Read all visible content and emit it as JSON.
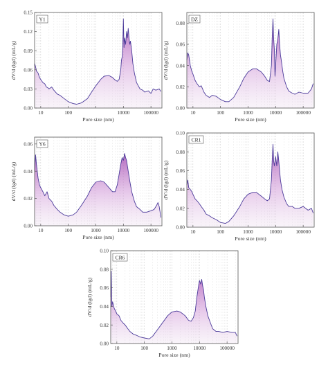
{
  "chart_data": [
    {
      "type": "area",
      "panel_label": "Y1",
      "xlabel": "Pore size (nm)",
      "ylabel": "dV/d (lgd) (mL/g)",
      "x_scale": "log",
      "xlim": [
        6,
        250000
      ],
      "ylim": [
        0,
        0.15
      ],
      "yticks": [
        0.0,
        0.03,
        0.06,
        0.09,
        0.12,
        0.15
      ],
      "ytick_labels": [
        "0.00",
        "0.03",
        "0.06",
        "0.09",
        "0.12",
        "0.15"
      ],
      "xticks": [
        10,
        100,
        1000,
        10000,
        100000
      ],
      "xtick_labels": [
        "10",
        "100",
        "",
        "10000",
        "100000"
      ],
      "grid": "vertical dashed",
      "series": [
        {
          "x": [
            6,
            6.5,
            7,
            8,
            9,
            10,
            12,
            14,
            16,
            18,
            20,
            25,
            30,
            40,
            50,
            70,
            100,
            150,
            200,
            300,
            500,
            700,
            1000,
            1500,
            2000,
            3000,
            4000,
            5000,
            6000,
            7000,
            8000,
            8500,
            9000,
            9500,
            10000,
            10500,
            11000,
            12000,
            13000,
            14000,
            15000,
            16000,
            17000,
            18000,
            20000,
            22000,
            25000,
            30000,
            40000,
            50000,
            60000,
            80000,
            100000,
            120000,
            150000,
            200000,
            230000
          ],
          "y": [
            0.07,
            0.065,
            0.058,
            0.055,
            0.048,
            0.045,
            0.04,
            0.038,
            0.033,
            0.032,
            0.03,
            0.033,
            0.028,
            0.022,
            0.02,
            0.015,
            0.01,
            0.007,
            0.006,
            0.008,
            0.015,
            0.025,
            0.035,
            0.045,
            0.05,
            0.051,
            0.048,
            0.044,
            0.042,
            0.045,
            0.06,
            0.075,
            0.08,
            0.095,
            0.14,
            0.095,
            0.11,
            0.1,
            0.12,
            0.11,
            0.125,
            0.11,
            0.1,
            0.105,
            0.09,
            0.07,
            0.055,
            0.04,
            0.03,
            0.028,
            0.025,
            0.027,
            0.023,
            0.03,
            0.028,
            0.03,
            0.026
          ]
        }
      ]
    },
    {
      "type": "area",
      "panel_label": "DZ",
      "xlabel": "Pore size (nm)",
      "ylabel": "dV/d (lgd) (mL/g)",
      "x_scale": "log",
      "xlim": [
        6,
        250000
      ],
      "ylim": [
        0,
        0.09
      ],
      "yticks": [
        0.0,
        0.02,
        0.04,
        0.06,
        0.08
      ],
      "ytick_labels": [
        "0.00",
        "0.02",
        "0.04",
        "0.06",
        "0.08"
      ],
      "xticks": [
        10,
        100,
        1000,
        10000,
        100000
      ],
      "xtick_labels": [
        "10",
        "100",
        "1000",
        "10000",
        "100000"
      ],
      "grid": "vertical dashed",
      "series": [
        {
          "x": [
            6,
            6.5,
            7,
            8,
            9,
            10,
            12,
            14,
            17,
            20,
            25,
            30,
            40,
            50,
            70,
            100,
            150,
            200,
            300,
            500,
            700,
            1000,
            1500,
            2000,
            3000,
            4000,
            5000,
            6000,
            7000,
            7500,
            8000,
            8500,
            9000,
            9500,
            10000,
            11000,
            12000,
            13000,
            14000,
            15000,
            16000,
            18000,
            20000,
            25000,
            30000,
            40000,
            50000,
            70000,
            100000,
            150000,
            200000,
            230000
          ],
          "y": [
            0.045,
            0.052,
            0.05,
            0.04,
            0.035,
            0.032,
            0.026,
            0.023,
            0.02,
            0.021,
            0.015,
            0.012,
            0.01,
            0.012,
            0.011,
            0.008,
            0.006,
            0.006,
            0.01,
            0.02,
            0.028,
            0.034,
            0.037,
            0.037,
            0.034,
            0.03,
            0.026,
            0.025,
            0.04,
            0.065,
            0.084,
            0.065,
            0.055,
            0.03,
            0.04,
            0.06,
            0.065,
            0.074,
            0.06,
            0.05,
            0.045,
            0.035,
            0.028,
            0.02,
            0.016,
            0.014,
            0.013,
            0.015,
            0.014,
            0.014,
            0.018,
            0.023
          ]
        }
      ]
    },
    {
      "type": "area",
      "panel_label": "Y6",
      "xlabel": "Pore size (nm)",
      "ylabel": "dV/d (lgd) (mL/g)",
      "x_scale": "log",
      "xlim": [
        6,
        250000
      ],
      "ylim": [
        0,
        0.065
      ],
      "yticks": [
        0.0,
        0.02,
        0.04,
        0.06
      ],
      "ytick_labels": [
        "0.00",
        "0.02",
        "0.04",
        "0.06"
      ],
      "xticks": [
        10,
        100,
        1000,
        10000,
        100000
      ],
      "xtick_labels": [
        "10",
        "100",
        "1000",
        "10000",
        "100000"
      ],
      "grid": "vertical dashed",
      "series": [
        {
          "x": [
            6,
            6.5,
            7,
            8,
            9,
            10,
            12,
            14,
            17,
            20,
            25,
            30,
            40,
            50,
            70,
            100,
            150,
            200,
            300,
            500,
            700,
            1000,
            1500,
            2000,
            3000,
            4000,
            5000,
            6000,
            7000,
            8000,
            9000,
            10000,
            11000,
            12000,
            13000,
            14000,
            15000,
            17000,
            20000,
            25000,
            30000,
            40000,
            50000,
            70000,
            100000,
            130000,
            160000,
            180000,
            200000,
            230000
          ],
          "y": [
            0.04,
            0.052,
            0.045,
            0.035,
            0.03,
            0.028,
            0.025,
            0.022,
            0.025,
            0.02,
            0.018,
            0.015,
            0.012,
            0.01,
            0.008,
            0.007,
            0.008,
            0.01,
            0.015,
            0.022,
            0.028,
            0.032,
            0.033,
            0.032,
            0.028,
            0.025,
            0.025,
            0.03,
            0.038,
            0.045,
            0.05,
            0.048,
            0.053,
            0.05,
            0.048,
            0.044,
            0.04,
            0.033,
            0.025,
            0.018,
            0.014,
            0.012,
            0.01,
            0.01,
            0.011,
            0.012,
            0.015,
            0.017,
            0.014,
            0.006
          ]
        }
      ]
    },
    {
      "type": "area",
      "panel_label": "CR1",
      "xlabel": "Pore size (nm)",
      "ylabel": "dV/d (lgd) (mL/g)",
      "x_scale": "log",
      "xlim": [
        6,
        250000
      ],
      "ylim": [
        0,
        0.1
      ],
      "yticks": [
        0.0,
        0.02,
        0.04,
        0.06,
        0.08,
        0.1
      ],
      "ytick_labels": [
        "0.00",
        "0.02",
        "0.04",
        "0.06",
        "0.08",
        "0.10"
      ],
      "xticks": [
        10,
        100,
        1000,
        10000,
        100000
      ],
      "xtick_labels": [
        "10",
        "100",
        "1000",
        "10000",
        "100000"
      ],
      "grid": "vertical dashed",
      "series": [
        {
          "x": [
            6,
            6.5,
            7,
            8,
            9,
            10,
            12,
            14,
            17,
            20,
            25,
            30,
            40,
            50,
            70,
            100,
            150,
            200,
            300,
            500,
            700,
            1000,
            1500,
            2000,
            3000,
            4000,
            5000,
            6000,
            7000,
            7500,
            8000,
            8500,
            9000,
            9500,
            10000,
            11000,
            12000,
            13000,
            14000,
            15000,
            17000,
            20000,
            25000,
            30000,
            40000,
            50000,
            70000,
            100000,
            150000,
            200000,
            230000
          ],
          "y": [
            0.045,
            0.05,
            0.042,
            0.04,
            0.038,
            0.035,
            0.03,
            0.028,
            0.025,
            0.022,
            0.018,
            0.014,
            0.012,
            0.01,
            0.008,
            0.005,
            0.004,
            0.006,
            0.012,
            0.022,
            0.03,
            0.035,
            0.037,
            0.037,
            0.033,
            0.03,
            0.028,
            0.03,
            0.05,
            0.07,
            0.088,
            0.07,
            0.065,
            0.07,
            0.075,
            0.065,
            0.08,
            0.07,
            0.06,
            0.05,
            0.04,
            0.032,
            0.025,
            0.022,
            0.022,
            0.02,
            0.02,
            0.022,
            0.018,
            0.02,
            0.015
          ]
        }
      ]
    },
    {
      "type": "area",
      "panel_label": "CR6",
      "xlabel": "Pore size (nm)",
      "ylabel": "dV/d (lgd) (mL/g)",
      "x_scale": "log",
      "xlim": [
        6,
        250000
      ],
      "ylim": [
        0,
        0.1
      ],
      "yticks": [
        0.0,
        0.02,
        0.04,
        0.06,
        0.08,
        0.1
      ],
      "ytick_labels": [
        "0.00",
        "0.02",
        "0.04",
        "0.06",
        "0.08",
        "0.10"
      ],
      "xticks": [
        10,
        100,
        1000,
        10000,
        100000
      ],
      "xtick_labels": [
        "10",
        "100",
        "1000",
        "10000",
        "100000"
      ],
      "grid": "vertical dashed",
      "series": [
        {
          "x": [
            6,
            6.3,
            6.6,
            7,
            8,
            9,
            10,
            12,
            14,
            17,
            20,
            25,
            30,
            40,
            50,
            70,
            100,
            150,
            200,
            300,
            500,
            700,
            1000,
            1500,
            2000,
            3000,
            4000,
            5000,
            6000,
            7000,
            8000,
            9000,
            10000,
            11000,
            12000,
            13000,
            14000,
            15000,
            17000,
            20000,
            25000,
            30000,
            40000,
            50000,
            70000,
            100000,
            150000,
            200000,
            230000
          ],
          "y": [
            0.05,
            0.078,
            0.04,
            0.045,
            0.038,
            0.035,
            0.032,
            0.03,
            0.025,
            0.022,
            0.02,
            0.016,
            0.013,
            0.01,
            0.009,
            0.007,
            0.006,
            0.005,
            0.008,
            0.015,
            0.024,
            0.03,
            0.034,
            0.035,
            0.034,
            0.03,
            0.025,
            0.024,
            0.028,
            0.035,
            0.05,
            0.06,
            0.068,
            0.064,
            0.069,
            0.062,
            0.058,
            0.05,
            0.04,
            0.03,
            0.022,
            0.016,
            0.013,
            0.013,
            0.012,
            0.013,
            0.012,
            0.012,
            0.008
          ]
        }
      ]
    }
  ]
}
